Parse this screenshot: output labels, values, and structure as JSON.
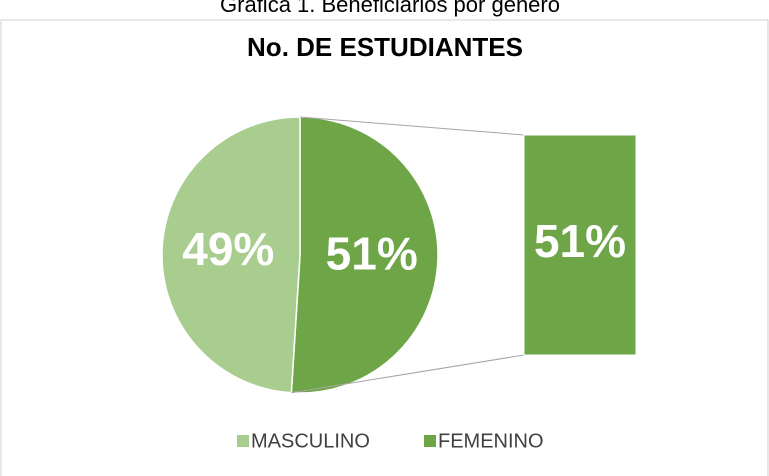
{
  "chart_data": {
    "type": "pie",
    "caption": "Gráfica 1. Beneficiarios por género",
    "title": "No. DE ESTUDIANTES",
    "categories": [
      "MASCULINO",
      "FEMENINO"
    ],
    "values": [
      49,
      51
    ],
    "value_labels": [
      "49%",
      "51%"
    ],
    "colors": [
      "#a9cd8f",
      "#6ea647"
    ],
    "legend": "bottom"
  }
}
